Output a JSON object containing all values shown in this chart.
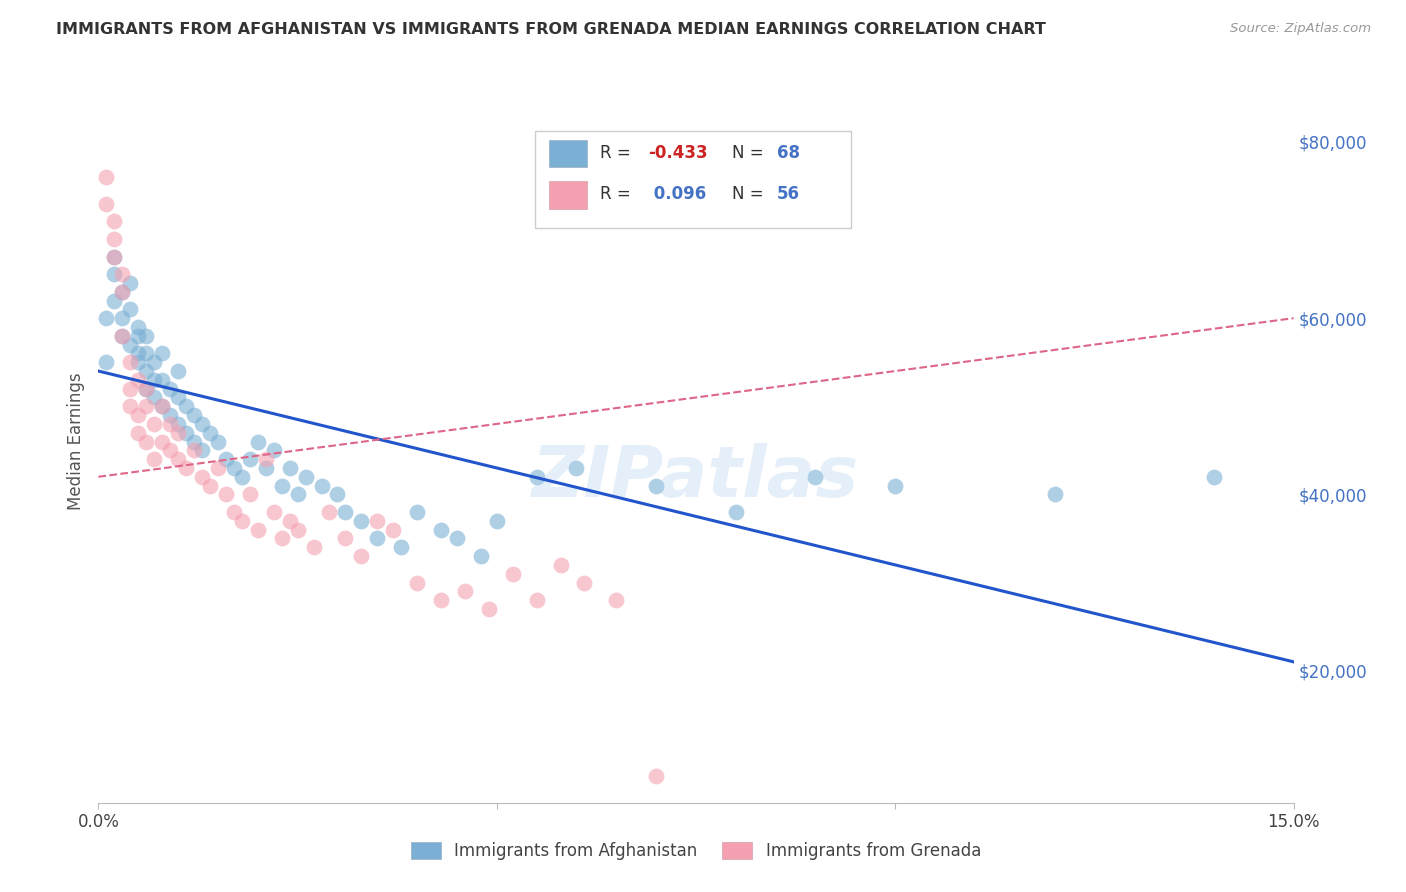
{
  "title": "IMMIGRANTS FROM AFGHANISTAN VS IMMIGRANTS FROM GRENADA MEDIAN EARNINGS CORRELATION CHART",
  "source": "Source: ZipAtlas.com",
  "ylabel": "Median Earnings",
  "xlim": [
    0.0,
    0.15
  ],
  "ylim": [
    5000,
    87000
  ],
  "yticks": [
    20000,
    40000,
    60000,
    80000
  ],
  "xticks": [
    0.0,
    0.05,
    0.1,
    0.15
  ],
  "xtick_labels": [
    "0.0%",
    "",
    "",
    "15.0%"
  ],
  "legend_label1": "Immigrants from Afghanistan",
  "legend_label2": "Immigrants from Grenada",
  "color_afghanistan": "#7BAFD4",
  "color_grenada": "#F4A0B0",
  "watermark": "ZIPatlas",
  "background_color": "#FFFFFF",
  "grid_color": "#CCCCCC",
  "afg_trend_x0": 0.0,
  "afg_trend_y0": 54000,
  "afg_trend_x1": 0.15,
  "afg_trend_y1": 21000,
  "gren_trend_x0": 0.0,
  "gren_trend_y0": 42000,
  "gren_trend_x1": 0.15,
  "gren_trend_y1": 60000,
  "afghanistan_x": [
    0.001,
    0.001,
    0.002,
    0.002,
    0.002,
    0.003,
    0.003,
    0.003,
    0.004,
    0.004,
    0.004,
    0.005,
    0.005,
    0.005,
    0.005,
    0.006,
    0.006,
    0.006,
    0.006,
    0.007,
    0.007,
    0.007,
    0.008,
    0.008,
    0.008,
    0.009,
    0.009,
    0.01,
    0.01,
    0.01,
    0.011,
    0.011,
    0.012,
    0.012,
    0.013,
    0.013,
    0.014,
    0.015,
    0.016,
    0.017,
    0.018,
    0.019,
    0.02,
    0.021,
    0.022,
    0.023,
    0.024,
    0.025,
    0.026,
    0.028,
    0.03,
    0.031,
    0.033,
    0.035,
    0.038,
    0.04,
    0.043,
    0.045,
    0.048,
    0.05,
    0.055,
    0.06,
    0.07,
    0.08,
    0.09,
    0.1,
    0.12,
    0.14
  ],
  "afghanistan_y": [
    55000,
    60000,
    65000,
    62000,
    67000,
    60000,
    58000,
    63000,
    61000,
    57000,
    64000,
    56000,
    58000,
    55000,
    59000,
    54000,
    56000,
    52000,
    58000,
    53000,
    55000,
    51000,
    50000,
    53000,
    56000,
    49000,
    52000,
    48000,
    51000,
    54000,
    47000,
    50000,
    46000,
    49000,
    45000,
    48000,
    47000,
    46000,
    44000,
    43000,
    42000,
    44000,
    46000,
    43000,
    45000,
    41000,
    43000,
    40000,
    42000,
    41000,
    40000,
    38000,
    37000,
    35000,
    34000,
    38000,
    36000,
    35000,
    33000,
    37000,
    42000,
    43000,
    41000,
    38000,
    42000,
    41000,
    40000,
    42000
  ],
  "grenada_x": [
    0.001,
    0.001,
    0.002,
    0.002,
    0.002,
    0.003,
    0.003,
    0.003,
    0.004,
    0.004,
    0.004,
    0.005,
    0.005,
    0.005,
    0.006,
    0.006,
    0.006,
    0.007,
    0.007,
    0.008,
    0.008,
    0.009,
    0.009,
    0.01,
    0.01,
    0.011,
    0.012,
    0.013,
    0.014,
    0.015,
    0.016,
    0.017,
    0.018,
    0.019,
    0.02,
    0.021,
    0.022,
    0.023,
    0.024,
    0.025,
    0.027,
    0.029,
    0.031,
    0.033,
    0.035,
    0.037,
    0.04,
    0.043,
    0.046,
    0.049,
    0.052,
    0.055,
    0.058,
    0.061,
    0.065,
    0.07
  ],
  "grenada_y": [
    73000,
    76000,
    69000,
    71000,
    67000,
    63000,
    58000,
    65000,
    52000,
    55000,
    50000,
    49000,
    53000,
    47000,
    50000,
    46000,
    52000,
    48000,
    44000,
    46000,
    50000,
    45000,
    48000,
    44000,
    47000,
    43000,
    45000,
    42000,
    41000,
    43000,
    40000,
    38000,
    37000,
    40000,
    36000,
    44000,
    38000,
    35000,
    37000,
    36000,
    34000,
    38000,
    35000,
    33000,
    37000,
    36000,
    30000,
    28000,
    29000,
    27000,
    31000,
    28000,
    32000,
    30000,
    28000,
    8000
  ]
}
